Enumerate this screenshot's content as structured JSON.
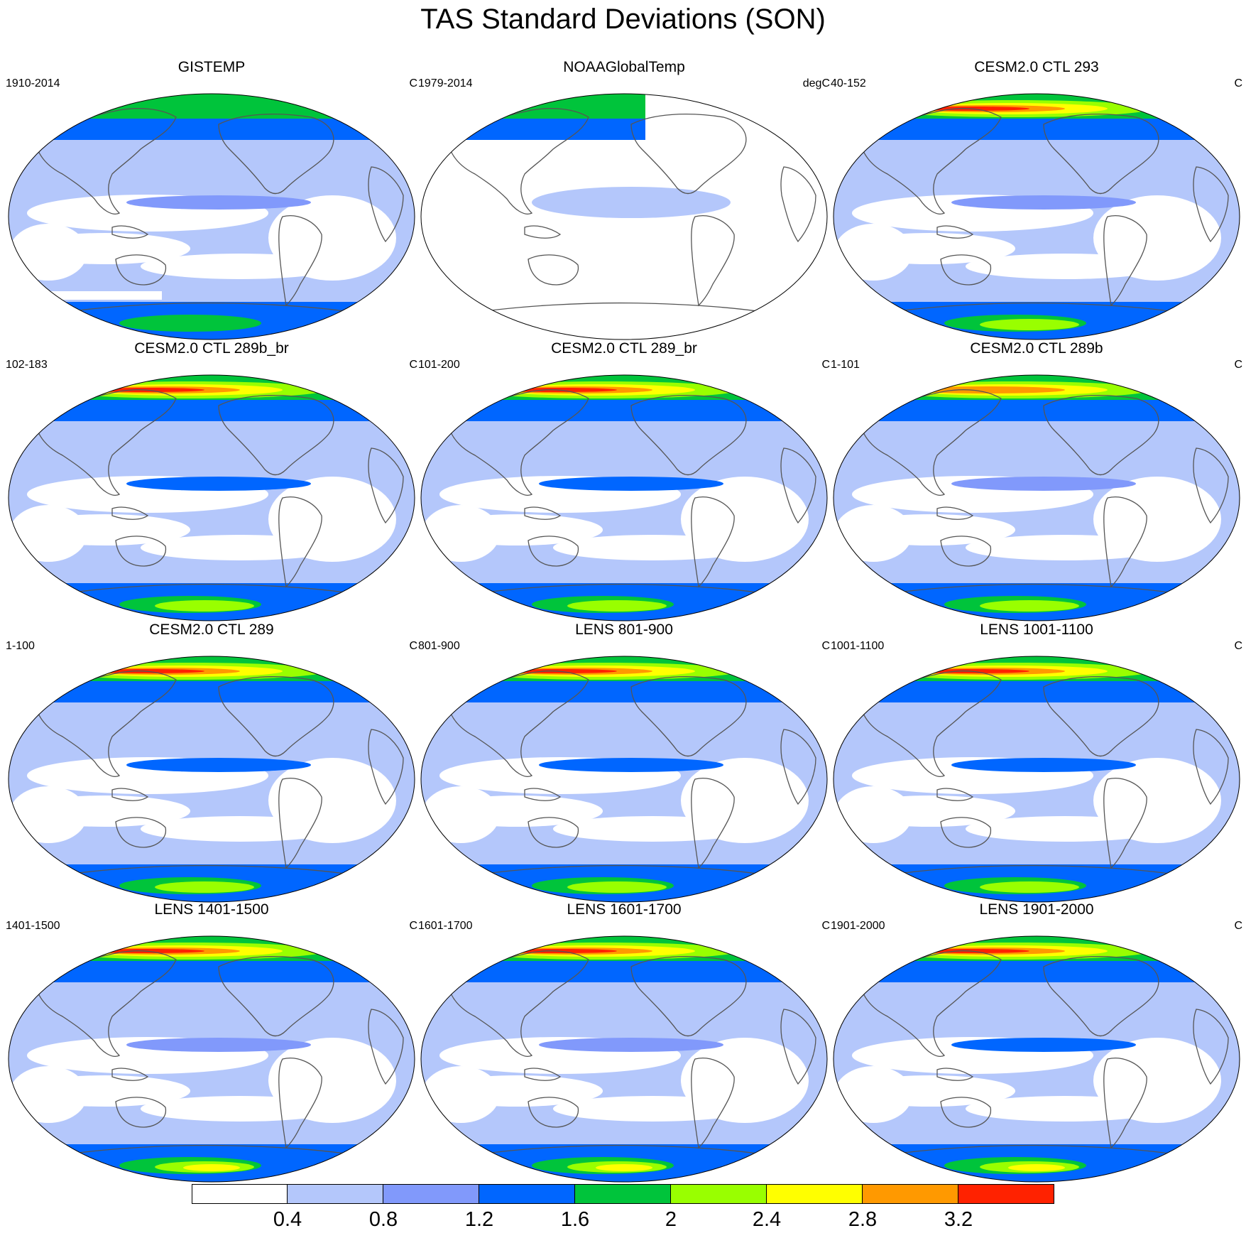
{
  "title": "TAS Standard Deviations (SON)",
  "colorbar": {
    "colors": [
      "#ffffff",
      "#b4c7fb",
      "#8199fb",
      "#0066ff",
      "#00c43b",
      "#99ff00",
      "#ffff00",
      "#ff9900",
      "#ff2200"
    ],
    "labels": [
      "0.4",
      "0.8",
      "1.2",
      "1.6",
      "2",
      "2.4",
      "2.8",
      "3.2"
    ]
  },
  "panels": [
    {
      "title": "GISTEMP",
      "period": "1910-2014",
      "units": "C",
      "dataset": "observed",
      "arctic_max_level": 4,
      "antarctic_max_level": 4,
      "tropics_max_level": 2
    },
    {
      "title": "NOAAGlobalTemp",
      "period": "1979-2014",
      "units": "degC",
      "dataset": "observed-partial",
      "arctic_max_level": 4,
      "antarctic_max_level": 0,
      "tropics_max_level": 2
    },
    {
      "title": "CESM2.0 CTL 293",
      "period": "40-152",
      "units": "C",
      "dataset": "model",
      "arctic_max_level": 8,
      "antarctic_max_level": 5,
      "tropics_max_level": 2
    },
    {
      "title": "CESM2.0 CTL 289b_br",
      "period": "102-183",
      "units": "C",
      "dataset": "model",
      "arctic_max_level": 8,
      "antarctic_max_level": 5,
      "tropics_max_level": 3
    },
    {
      "title": "CESM2.0 CTL 289_br",
      "period": "101-200",
      "units": "C",
      "dataset": "model",
      "arctic_max_level": 8,
      "antarctic_max_level": 5,
      "tropics_max_level": 3
    },
    {
      "title": "CESM2.0 CTL 289b",
      "period": "1-101",
      "units": "C",
      "dataset": "model",
      "arctic_max_level": 7,
      "antarctic_max_level": 5,
      "tropics_max_level": 2
    },
    {
      "title": "CESM2.0 CTL 289",
      "period": "1-100",
      "units": "C",
      "dataset": "model",
      "arctic_max_level": 8,
      "antarctic_max_level": 5,
      "tropics_max_level": 3
    },
    {
      "title": "LENS 801-900",
      "period": "801-900",
      "units": "C",
      "dataset": "model",
      "arctic_max_level": 8,
      "antarctic_max_level": 5,
      "tropics_max_level": 3
    },
    {
      "title": "LENS 1001-1100",
      "period": "1001-1100",
      "units": "C",
      "dataset": "model",
      "arctic_max_level": 8,
      "antarctic_max_level": 5,
      "tropics_max_level": 3
    },
    {
      "title": "LENS 1401-1500",
      "period": "1401-1500",
      "units": "C",
      "dataset": "model",
      "arctic_max_level": 8,
      "antarctic_max_level": 6,
      "tropics_max_level": 2
    },
    {
      "title": "LENS 1601-1700",
      "period": "1601-1700",
      "units": "C",
      "dataset": "model",
      "arctic_max_level": 8,
      "antarctic_max_level": 6,
      "tropics_max_level": 2
    },
    {
      "title": "LENS 1901-2000",
      "period": "1901-2000",
      "units": "C",
      "dataset": "model",
      "arctic_max_level": 8,
      "antarctic_max_level": 6,
      "tropics_max_level": 3
    }
  ]
}
